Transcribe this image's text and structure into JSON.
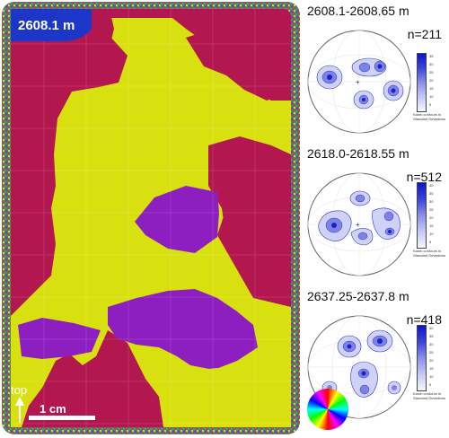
{
  "map": {
    "depth_label": "2608.1 m",
    "direction_label": "top",
    "scale_label": "1 cm"
  },
  "panels": [
    {
      "title": "2608.1-2608.65 m",
      "n": "n=211",
      "ticks": [
        "35",
        "30",
        "25",
        "20",
        "15",
        "10",
        "5"
      ],
      "legend_line1": "Kamb contours in",
      "legend_line2": "Standard Deviations"
    },
    {
      "title": "2618.0-2618.55 m",
      "n": "n=512",
      "ticks": [
        "40",
        "35",
        "30",
        "25",
        "20",
        "15",
        "10",
        "5"
      ],
      "legend_line1": "Kamb contours in",
      "legend_line2": "Standard Deviations"
    },
    {
      "title": "2637.25-2637.8 m",
      "n": "n=418",
      "ticks": [
        "40",
        "35",
        "30",
        "25",
        "20",
        "15",
        "10",
        "5"
      ],
      "legend_line1": "Kamb contours in",
      "legend_line2": "Standard Deviations"
    }
  ],
  "colors": {
    "grain_red": "#b3174f",
    "grain_yellow": "#d8e10f",
    "grain_purple": "#8d1fc0",
    "label_blue": "#1c36c8",
    "contour_blue": "#2a35d6"
  }
}
